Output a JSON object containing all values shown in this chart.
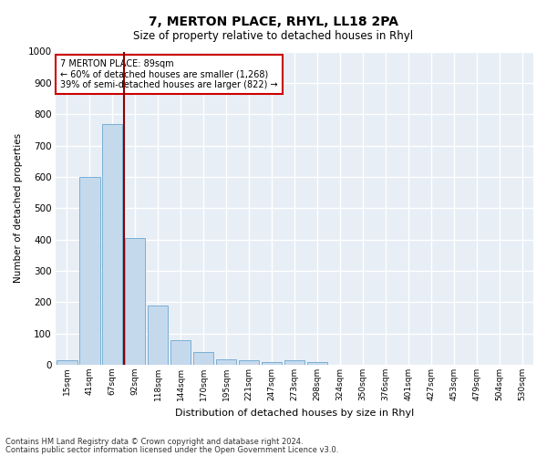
{
  "title": "7, MERTON PLACE, RHYL, LL18 2PA",
  "subtitle": "Size of property relative to detached houses in Rhyl",
  "xlabel": "Distribution of detached houses by size in Rhyl",
  "ylabel": "Number of detached properties",
  "bar_color": "#c5d9ed",
  "bar_edge_color": "#7aafd4",
  "background_color": "#e8eef6",
  "grid_color": "#ffffff",
  "categories": [
    "15sqm",
    "41sqm",
    "67sqm",
    "92sqm",
    "118sqm",
    "144sqm",
    "170sqm",
    "195sqm",
    "221sqm",
    "247sqm",
    "273sqm",
    "298sqm",
    "324sqm",
    "350sqm",
    "376sqm",
    "401sqm",
    "427sqm",
    "453sqm",
    "479sqm",
    "504sqm",
    "530sqm"
  ],
  "values": [
    15,
    600,
    770,
    405,
    190,
    78,
    40,
    18,
    16,
    10,
    15,
    8,
    0,
    0,
    0,
    0,
    0,
    0,
    0,
    0,
    0
  ],
  "ylim": [
    0,
    1000
  ],
  "yticks": [
    0,
    100,
    200,
    300,
    400,
    500,
    600,
    700,
    800,
    900,
    1000
  ],
  "annotation_text_line1": "7 MERTON PLACE: 89sqm",
  "annotation_text_line2": "← 60% of detached houses are smaller (1,268)",
  "annotation_text_line3": "39% of semi-detached houses are larger (822) →",
  "vline_x": 2.5,
  "footnote1": "Contains HM Land Registry data © Crown copyright and database right 2024.",
  "footnote2": "Contains public sector information licensed under the Open Government Licence v3.0."
}
